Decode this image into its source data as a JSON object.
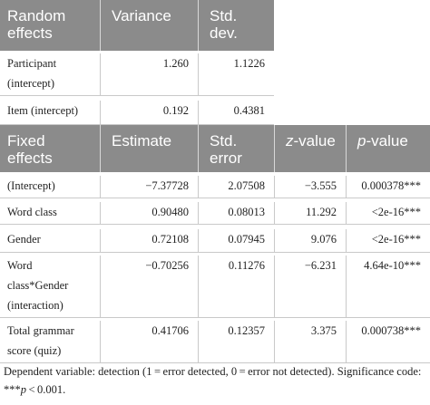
{
  "random_header": {
    "label_line1": "Random",
    "label_line2": "effects",
    "variance": "Variance",
    "std_line1": "Std.",
    "std_line2": "dev."
  },
  "random_rows": [
    {
      "effect_line1": "Participant",
      "effect_line2": "(intercept)",
      "variance": "1.260",
      "std": "1.1226"
    },
    {
      "effect_line1": "Item (intercept)",
      "effect_line2": "",
      "variance": "0.192",
      "std": "0.4381"
    }
  ],
  "fixed_header": {
    "label_line1": "Fixed",
    "label_line2": "effects",
    "estimate": "Estimate",
    "std_line1": "Std.",
    "std_line2": "error",
    "z_italic": "z",
    "z_rest": "-value",
    "p_italic": "p",
    "p_rest": "-value"
  },
  "fixed_rows": [
    {
      "effect_lines": [
        "(Intercept)"
      ],
      "estimate": "−7.37728",
      "std_error": "2.07508",
      "z": "−3.555",
      "p": "0.000378***"
    },
    {
      "effect_lines": [
        "Word class"
      ],
      "estimate": "0.90480",
      "std_error": "0.08013",
      "z": "11.292",
      "p": "<2e-16***"
    },
    {
      "effect_lines": [
        "Gender"
      ],
      "estimate": "0.72108",
      "std_error": "0.07945",
      "z": "9.076",
      "p": "<2e-16***"
    },
    {
      "effect_lines": [
        "Word",
        "class*Gender",
        "(interaction)"
      ],
      "estimate": "−0.70256",
      "std_error": "0.11276",
      "z": "−6.231",
      "p": "4.64e-10***"
    },
    {
      "effect_lines": [
        "Total grammar",
        "score (quiz)"
      ],
      "estimate": "0.41706",
      "std_error": "0.12357",
      "z": "3.375",
      "p": "0.000738***"
    }
  ],
  "footnote": {
    "line1": "Dependent variable: detection (1 = error detected, 0 = error not detected). Significance code:",
    "line2_prefix": "***",
    "line2_p": "p",
    "line2_suffix": " < 0.001."
  }
}
